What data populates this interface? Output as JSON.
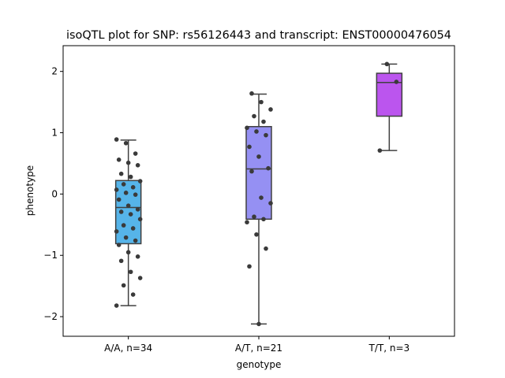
{
  "chart_data": {
    "type": "box",
    "title": "isoQTL plot for SNP: rs56126443 and transcript: ENST00000476054",
    "xlabel": "genotype",
    "ylabel": "phenotype",
    "ylim": [
      -2.32,
      2.42
    ],
    "yticks": [
      2,
      1,
      0,
      -1,
      -2
    ],
    "ytick_labels": [
      "2",
      "1",
      "0",
      "−1",
      "−2"
    ],
    "grid": false,
    "legend": "none",
    "categories": [
      "A/A, n=34",
      "A/T, n=21",
      "T/T, n=3"
    ],
    "groups": [
      {
        "label": "A/A, n=34",
        "color": "#56B4E9",
        "box": {
          "q1": -0.81,
          "median": -0.22,
          "q3": 0.22,
          "whisker_low": -1.82,
          "whisker_high": 0.88
        },
        "points": [
          0.89,
          0.83,
          0.66,
          0.56,
          0.51,
          0.47,
          0.33,
          0.28,
          0.21,
          0.16,
          0.11,
          0.07,
          0.02,
          -0.01,
          -0.09,
          -0.19,
          -0.25,
          -0.29,
          -0.33,
          -0.41,
          -0.51,
          -0.56,
          -0.61,
          -0.71,
          -0.76,
          -0.83,
          -0.95,
          -1.02,
          -1.09,
          -1.27,
          -1.37,
          -1.49,
          -1.64,
          -1.82
        ]
      },
      {
        "label": "A/T, n=21",
        "color": "#9590F3",
        "box": {
          "q1": -0.41,
          "median": 0.41,
          "q3": 1.1,
          "whisker_low": -2.12,
          "whisker_high": 1.63
        },
        "points": [
          1.64,
          1.5,
          1.38,
          1.27,
          1.18,
          1.08,
          1.02,
          0.96,
          0.77,
          0.61,
          0.42,
          0.37,
          -0.06,
          -0.15,
          -0.37,
          -0.41,
          -0.46,
          -0.66,
          -0.89,
          -1.18,
          -2.12
        ]
      },
      {
        "label": "T/T, n=3",
        "color": "#BB55EE",
        "box": {
          "q1": 1.27,
          "median": 1.82,
          "q3": 1.97,
          "whisker_low": 0.71,
          "whisker_high": 2.12
        },
        "points": [
          2.12,
          1.83,
          0.71
        ]
      }
    ]
  }
}
